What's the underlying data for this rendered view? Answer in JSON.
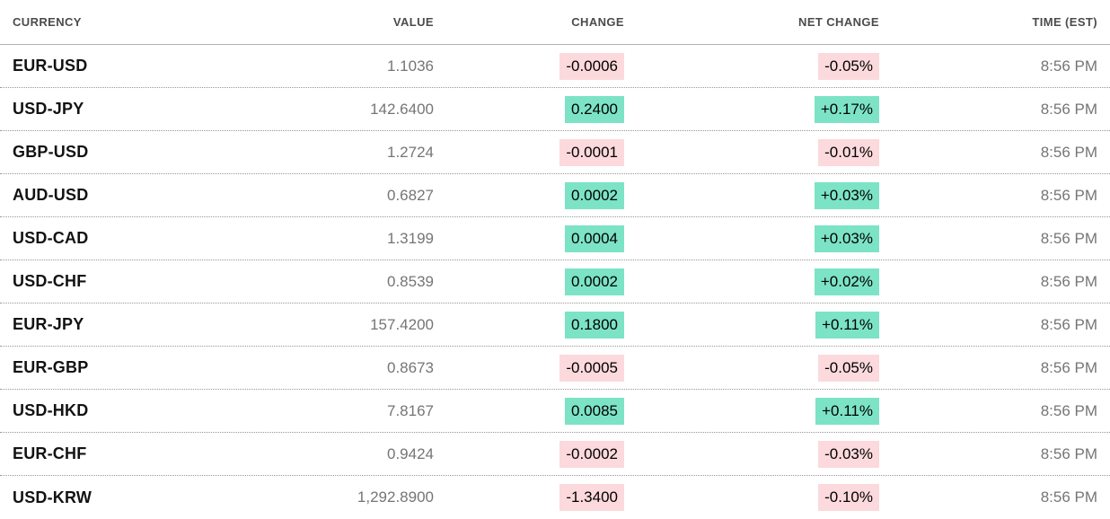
{
  "colors": {
    "positive_badge_bg": "#7ce3c6",
    "negative_badge_bg": "#fcd9dc",
    "currency_text": "#121212",
    "muted_text": "#757575",
    "header_text": "#4b4b4b"
  },
  "chart_data": {
    "type": "table",
    "columns": [
      "CURRENCY",
      "VALUE",
      "CHANGE",
      "NET CHANGE",
      "TIME (EST)"
    ],
    "rows": [
      {
        "currency": "EUR-USD",
        "value": "1.1036",
        "change": "-0.0006",
        "net_change": "-0.05%",
        "time": "8:56 PM",
        "direction": "down"
      },
      {
        "currency": "USD-JPY",
        "value": "142.6400",
        "change": "0.2400",
        "net_change": "+0.17%",
        "time": "8:56 PM",
        "direction": "up"
      },
      {
        "currency": "GBP-USD",
        "value": "1.2724",
        "change": "-0.0001",
        "net_change": "-0.01%",
        "time": "8:56 PM",
        "direction": "down"
      },
      {
        "currency": "AUD-USD",
        "value": "0.6827",
        "change": "0.0002",
        "net_change": "+0.03%",
        "time": "8:56 PM",
        "direction": "up"
      },
      {
        "currency": "USD-CAD",
        "value": "1.3199",
        "change": "0.0004",
        "net_change": "+0.03%",
        "time": "8:56 PM",
        "direction": "up"
      },
      {
        "currency": "USD-CHF",
        "value": "0.8539",
        "change": "0.0002",
        "net_change": "+0.02%",
        "time": "8:56 PM",
        "direction": "up"
      },
      {
        "currency": "EUR-JPY",
        "value": "157.4200",
        "change": "0.1800",
        "net_change": "+0.11%",
        "time": "8:56 PM",
        "direction": "up"
      },
      {
        "currency": "EUR-GBP",
        "value": "0.8673",
        "change": "-0.0005",
        "net_change": "-0.05%",
        "time": "8:56 PM",
        "direction": "down"
      },
      {
        "currency": "USD-HKD",
        "value": "7.8167",
        "change": "0.0085",
        "net_change": "+0.11%",
        "time": "8:56 PM",
        "direction": "up"
      },
      {
        "currency": "EUR-CHF",
        "value": "0.9424",
        "change": "-0.0002",
        "net_change": "-0.03%",
        "time": "8:56 PM",
        "direction": "down"
      },
      {
        "currency": "USD-KRW",
        "value": "1,292.8900",
        "change": "-1.3400",
        "net_change": "-0.10%",
        "time": "8:56 PM",
        "direction": "down"
      }
    ]
  }
}
